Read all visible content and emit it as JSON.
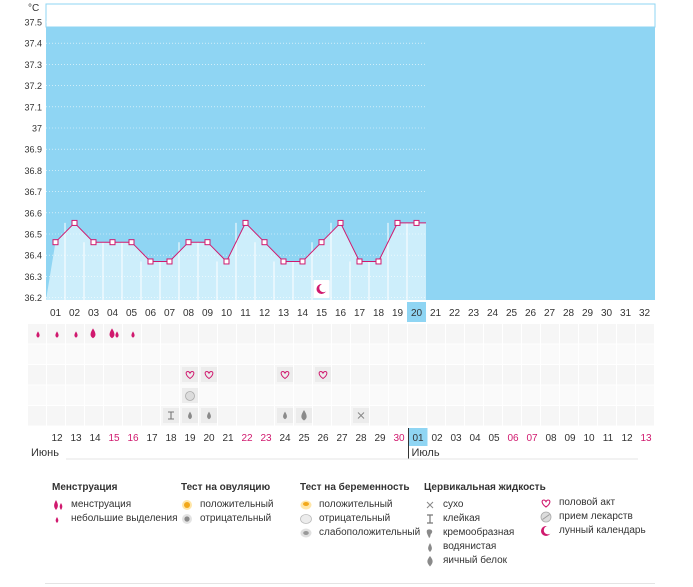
{
  "chart_data": {
    "type": "line",
    "y_unit": "°C",
    "ylim": [
      36.2,
      37.6
    ],
    "y_ticks": [
      "37.5",
      "37.4",
      "37.3",
      "37.2",
      "37.1",
      "37",
      "36.9",
      "36.8",
      "36.7",
      "36.6",
      "36.5",
      "36.4",
      "36.3",
      "36.2"
    ],
    "cycle_days": [
      "01",
      "02",
      "03",
      "04",
      "05",
      "06",
      "07",
      "08",
      "09",
      "10",
      "11",
      "12",
      "13",
      "14",
      "15",
      "16",
      "17",
      "18",
      "19",
      "20",
      "21",
      "22",
      "23",
      "24",
      "25",
      "26",
      "27",
      "28",
      "29",
      "30",
      "31",
      "32"
    ],
    "current_day_index": 19,
    "series": [
      {
        "values": [
          36.5,
          36.6,
          36.5,
          36.5,
          36.5,
          36.4,
          36.4,
          36.5,
          36.5,
          36.4,
          36.6,
          36.5,
          36.4,
          36.4,
          36.5,
          36.6,
          36.4,
          36.4,
          36.6,
          36.6
        ]
      }
    ],
    "calendar_dates": [
      "12",
      "13",
      "14",
      "15",
      "16",
      "17",
      "18",
      "19",
      "20",
      "21",
      "22",
      "23",
      "24",
      "25",
      "26",
      "27",
      "28",
      "29",
      "30",
      "01",
      "02",
      "03",
      "04",
      "05",
      "06",
      "07",
      "08",
      "09",
      "10",
      "11",
      "12",
      "13"
    ],
    "highlighted_date_indices": [
      3,
      4,
      10,
      11,
      18,
      24,
      25,
      31
    ],
    "months": [
      {
        "label": "Июнь",
        "start_index": 0
      },
      {
        "label": "Июль",
        "start_index": 19
      }
    ],
    "markers": {
      "menstruation_heavy": [
        3,
        4
      ],
      "menstruation_light": [
        0,
        1,
        2,
        4,
        5
      ],
      "intercourse": [
        8,
        9,
        13,
        15
      ],
      "medication": [
        8
      ],
      "fluid_sticky": [
        7
      ],
      "fluid_watery": [
        8,
        9,
        13
      ],
      "fluid_eggwhite": [
        14
      ],
      "fluid_dry": [
        17
      ],
      "lunar": [
        14
      ]
    }
  },
  "legend": {
    "menstruation": {
      "title": "Менструация",
      "items": [
        {
          "icon": "menstruation-drops-icon",
          "label": "менструация"
        },
        {
          "icon": "small-drop-icon",
          "label": "небольшие выделения"
        }
      ]
    },
    "ovulation_test": {
      "title": "Тест на овуляцию",
      "items": [
        {
          "icon": "positive-test-icon",
          "label": "положительный"
        },
        {
          "icon": "negative-test-icon",
          "label": "отрицательный"
        }
      ]
    },
    "pregnancy_test": {
      "title": "Тест на беременность",
      "items": [
        {
          "icon": "positive-test-icon",
          "label": "положительный"
        },
        {
          "icon": "negative-test-icon",
          "label": "отрицательный"
        },
        {
          "icon": "weak-positive-test-icon",
          "label": "слабоположительный"
        }
      ]
    },
    "cervical_fluid": {
      "title": "Цервикальная жидкость",
      "items": [
        {
          "icon": "dry-cross-icon",
          "label": "сухо"
        },
        {
          "icon": "sticky-icon",
          "label": "клейкая"
        },
        {
          "icon": "creamy-icon",
          "label": "кремообразная"
        },
        {
          "icon": "watery-drop-icon",
          "label": "водянистая"
        },
        {
          "icon": "egg-white-drop-icon",
          "label": "яичный белок"
        }
      ]
    },
    "other": {
      "items": [
        {
          "icon": "heart-icon",
          "label": "половой акт"
        },
        {
          "icon": "pill-icon",
          "label": "прием лекарств"
        },
        {
          "icon": "moon-icon",
          "label": "лунный календарь"
        }
      ]
    }
  },
  "colors": {
    "sky": "#8fd5f3",
    "bar": "#cdeefb",
    "line": "#d0196e",
    "current": "#8fd5f3",
    "holiday": "#d0196e"
  }
}
